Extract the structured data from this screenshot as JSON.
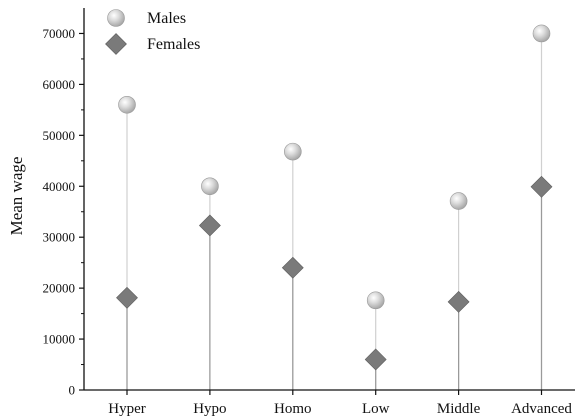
{
  "chart_data": {
    "type": "scatter",
    "subtype": "lollipop",
    "categories": [
      "Hyper",
      "Hypo",
      "Homo",
      "Low",
      "Middle",
      "Advanced"
    ],
    "series": [
      {
        "name": "Males",
        "marker": "circle",
        "color": "#c4c4c4",
        "stem_color": "#d0d0d0",
        "values": [
          56000,
          40000,
          46800,
          17600,
          37100,
          70000
        ]
      },
      {
        "name": "Females",
        "marker": "diamond",
        "color": "#7a7a7a",
        "stem_color": "#9a9a9a",
        "values": [
          18100,
          32300,
          24000,
          6000,
          17300,
          39900
        ]
      }
    ],
    "ylabel": "Mean wage",
    "xlabel": "",
    "ylim": [
      0,
      75000
    ],
    "yticks": [
      0,
      10000,
      20000,
      30000,
      40000,
      50000,
      60000,
      70000
    ],
    "legend_position": "top-left",
    "grid": false
  }
}
